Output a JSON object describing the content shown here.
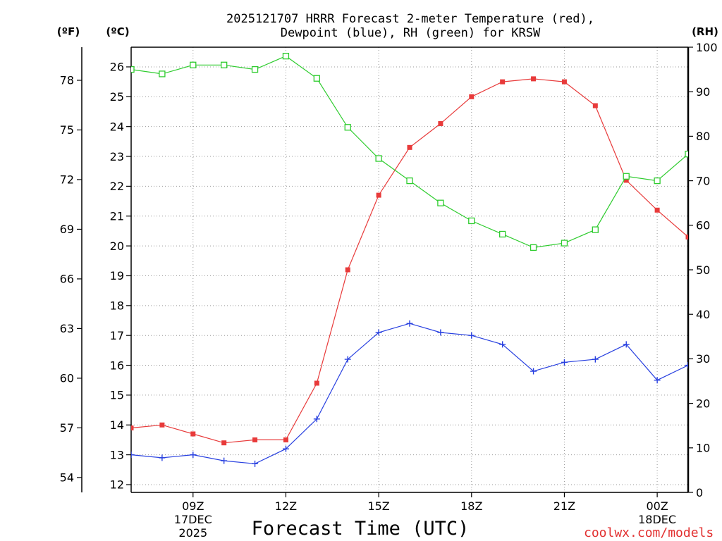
{
  "chart_data": {
    "type": "line",
    "title": "2025121707 HRRR Forecast 2-meter Temperature (red), Dewpoint (blue), RH (green) for KRSW",
    "xlabel": "Forecast Time (UTC)",
    "xlim": [
      "2025-12-17T07:00:00Z",
      "2025-12-18T01:00:00Z"
    ],
    "x": [
      "2025-12-17T07:00:00Z",
      "2025-12-17T08:00:00Z",
      "2025-12-17T09:00:00Z",
      "2025-12-17T10:00:00Z",
      "2025-12-17T11:00:00Z",
      "2025-12-17T12:00:00Z",
      "2025-12-17T13:00:00Z",
      "2025-12-17T14:00:00Z",
      "2025-12-17T15:00:00Z",
      "2025-12-17T16:00:00Z",
      "2025-12-17T17:00:00Z",
      "2025-12-17T18:00:00Z",
      "2025-12-17T19:00:00Z",
      "2025-12-17T20:00:00Z",
      "2025-12-17T21:00:00Z",
      "2025-12-17T22:00:00Z",
      "2025-12-17T23:00:00Z",
      "2025-12-18T00:00:00Z",
      "2025-12-18T01:00:00Z"
    ],
    "x_ticks": [
      {
        "time": "2025-12-17T09:00:00Z",
        "label": "09Z",
        "date": "17DEC",
        "year": "2025"
      },
      {
        "time": "2025-12-17T12:00:00Z",
        "label": "12Z"
      },
      {
        "time": "2025-12-17T15:00:00Z",
        "label": "15Z"
      },
      {
        "time": "2025-12-17T18:00:00Z",
        "label": "18Z"
      },
      {
        "time": "2025-12-17T21:00:00Z",
        "label": "21Z"
      },
      {
        "time": "2025-12-18T00:00:00Z",
        "label": "00Z",
        "date": "18DEC"
      }
    ],
    "y_left_outer": {
      "label": "(ºF)",
      "ylim": [
        53.1,
        80.0
      ],
      "ticks": [
        54,
        57,
        60,
        63,
        66,
        69,
        72,
        75,
        78
      ]
    },
    "y_left": {
      "label": "(ºC)",
      "ylim": [
        11.74,
        26.66
      ],
      "ticks": [
        12,
        13,
        14,
        15,
        16,
        17,
        18,
        19,
        20,
        21,
        22,
        23,
        24,
        25,
        26
      ]
    },
    "y_right": {
      "label": "(RH)",
      "ylim": [
        0,
        100
      ],
      "ticks": [
        0,
        10,
        20,
        30,
        40,
        50,
        60,
        70,
        80,
        90,
        100
      ]
    },
    "grid": true,
    "series": [
      {
        "axis": "left",
        "color": "#e83a3a",
        "marker": "filled-square",
        "values": [
          13.9,
          14.0,
          13.7,
          13.4,
          13.5,
          13.5,
          15.4,
          19.2,
          21.7,
          23.3,
          24.1,
          25.0,
          25.5,
          25.6,
          25.5,
          24.7,
          22.2,
          21.2,
          20.3
        ]
      },
      {
        "axis": "left",
        "color": "#2840e0",
        "marker": "plus",
        "values": [
          13.0,
          12.9,
          13.0,
          12.8,
          12.7,
          13.2,
          14.2,
          16.2,
          17.1,
          17.4,
          17.1,
          17.0,
          16.7,
          15.8,
          16.1,
          16.2,
          16.7,
          15.5,
          16.0
        ]
      },
      {
        "axis": "right",
        "color": "#2ecc2e",
        "marker": "open-square",
        "values": [
          95,
          94,
          96,
          96,
          95,
          98,
          93,
          82,
          75,
          70,
          65,
          61,
          58,
          55,
          56,
          59,
          71,
          70,
          76
        ]
      }
    ]
  },
  "watermark": {
    "text": "coolwx.com/models",
    "color": "#e23030"
  }
}
